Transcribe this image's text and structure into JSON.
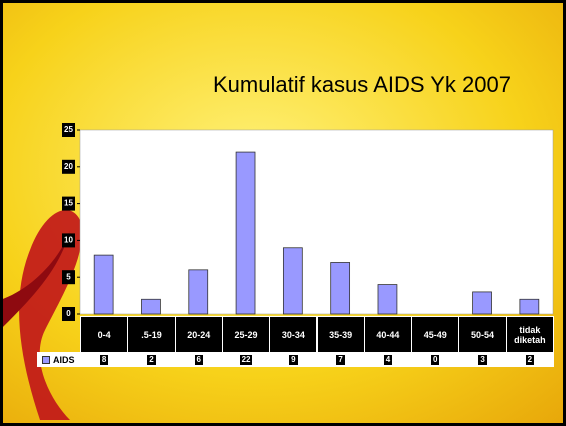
{
  "chart_data": {
    "type": "bar",
    "title": "Kumulatif kasus AIDS Yk 2007",
    "categories": [
      "0-4",
      ".5-19",
      "20-24",
      "25-29",
      "30-34",
      "35-39",
      "40-44",
      "45-49",
      "50-54",
      "tidak diketah"
    ],
    "series": [
      {
        "name": "AIDS",
        "color": "#9999ff",
        "values": [
          8,
          2,
          6,
          22,
          9,
          7,
          4,
          0,
          3,
          2
        ]
      }
    ],
    "ylim": [
      0,
      25
    ],
    "yticks": [
      0,
      5,
      10,
      15,
      20,
      25
    ]
  }
}
